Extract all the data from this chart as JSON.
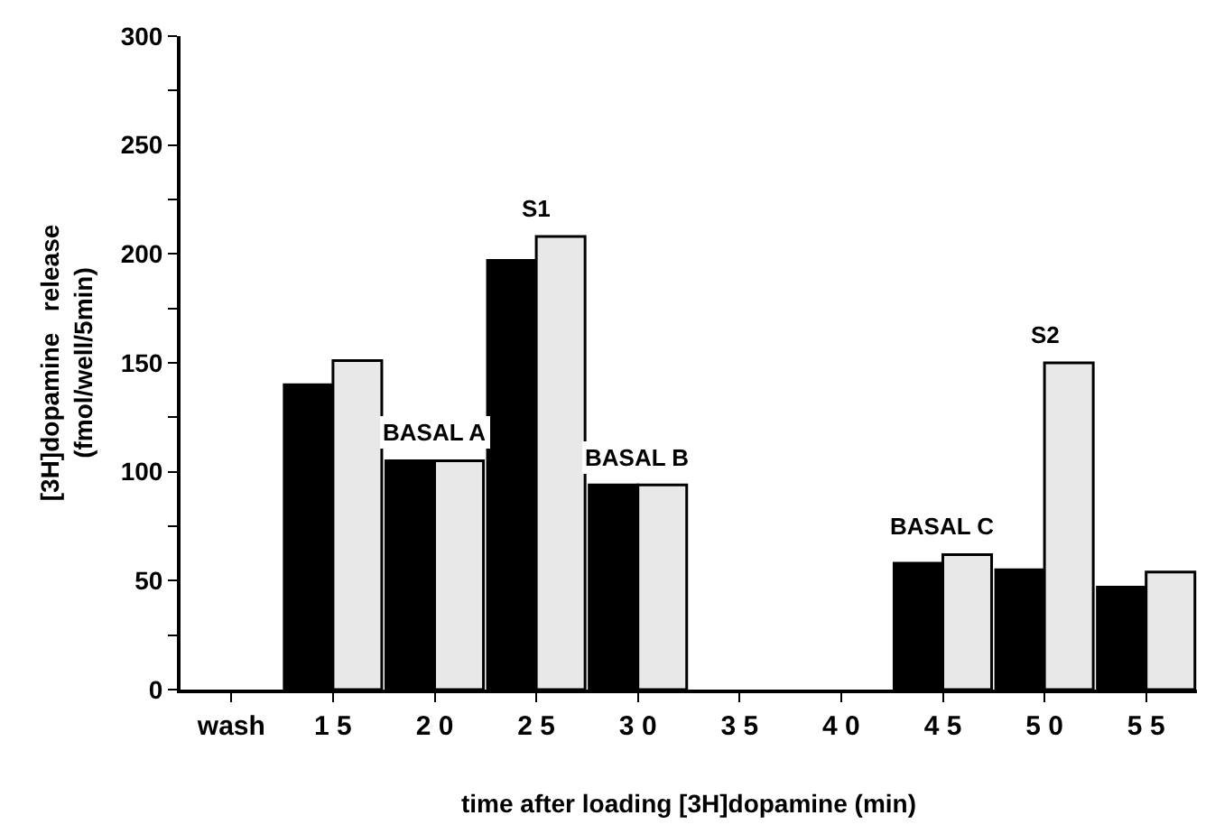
{
  "chart_data": {
    "type": "bar",
    "xlabel": "time after loading [3H]dopamine (min)",
    "ylabel": "[3H]dopamine   release\n(fmol/well/5min)",
    "categories": [
      "wash",
      "1 5",
      "2 0",
      "2 5",
      "3 0",
      "3 5",
      "4 0",
      "4 5",
      "5 0",
      "5 5"
    ],
    "series": [
      {
        "color": "#000000",
        "values": [
          null,
          140,
          105,
          197,
          94,
          null,
          null,
          58,
          55,
          47
        ]
      },
      {
        "color": "#e8e8e8",
        "values": [
          null,
          151,
          105,
          208,
          94,
          null,
          null,
          62,
          150,
          54
        ]
      }
    ],
    "ylim": [
      0,
      300
    ],
    "yticks": [
      0,
      {
        "value": 25,
        "label": null
      },
      50,
      {
        "value": 75,
        "label": null
      },
      100,
      {
        "value": 125,
        "label": null
      },
      150,
      {
        "value": 175,
        "label": null
      },
      200,
      {
        "value": 225,
        "label": null
      },
      250,
      {
        "value": 275,
        "label": null
      },
      300
    ],
    "annotations": [
      {
        "text": "BASAL A",
        "x": "2 0",
        "y": 105
      },
      {
        "text": "S1",
        "x": "2 5",
        "y": 208
      },
      {
        "text": "BASAL B",
        "x": "3 0",
        "y": 94
      },
      {
        "text": "BASAL C",
        "x": "4 5",
        "y": 62
      },
      {
        "text": "S2",
        "x": "5 0",
        "y": 150
      }
    ]
  }
}
